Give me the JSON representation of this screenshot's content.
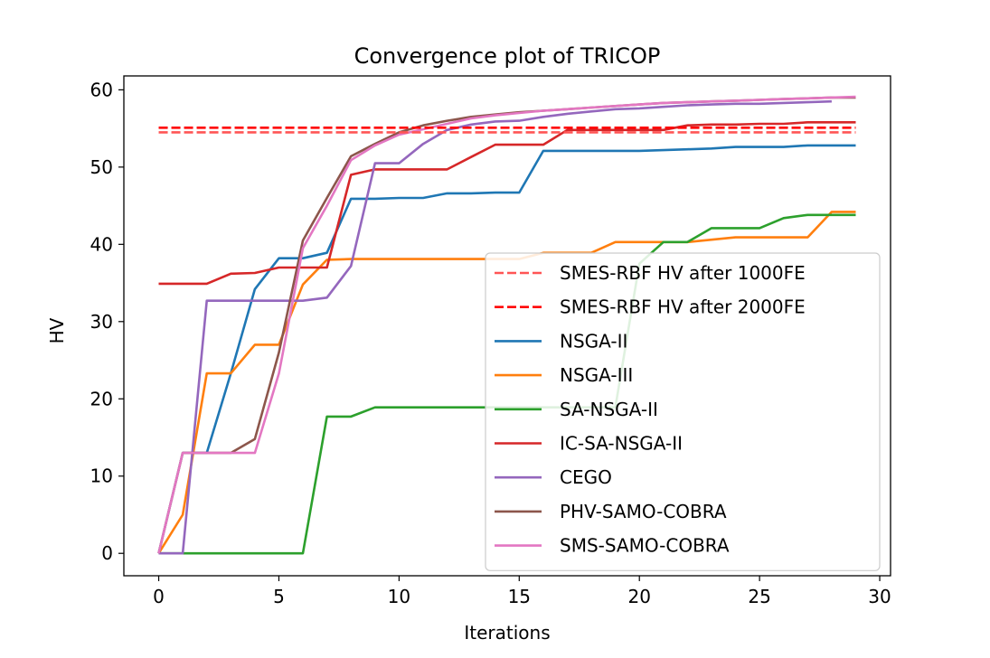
{
  "chart_data": {
    "type": "line",
    "title": "Convergence plot of TRICOP",
    "xlabel": "Iterations",
    "ylabel": "HV",
    "xlim": [
      -1.45,
      30.45
    ],
    "ylim": [
      -2.9,
      61.8
    ],
    "xticks": [
      0,
      5,
      10,
      15,
      20,
      25,
      30
    ],
    "yticks": [
      0,
      10,
      20,
      30,
      40,
      50,
      60
    ],
    "grid": false,
    "legend_position": "lower-right",
    "reference_lines": [
      {
        "name": "SMES-RBF HV after 1000FE",
        "y": 54.5,
        "x_range": [
          0,
          29
        ],
        "color": "#ff5555",
        "style": "dashed"
      },
      {
        "name": "SMES-RBF HV after 2000FE",
        "y": 55.1,
        "x_range": [
          0,
          29
        ],
        "color": "#ff0000",
        "style": "dashed"
      }
    ],
    "series": [
      {
        "name": "NSGA-II",
        "color": "#1f77b4",
        "x": [
          0,
          1,
          2,
          3,
          4,
          5,
          6,
          7,
          8,
          9,
          10,
          11,
          12,
          13,
          14,
          15,
          16,
          17,
          18,
          19,
          20,
          21,
          22,
          23,
          24,
          25,
          26,
          27,
          28,
          29
        ],
        "values": [
          0,
          13,
          13,
          23.3,
          34.2,
          38.2,
          38.2,
          38.9,
          45.9,
          45.9,
          46.0,
          46.0,
          46.6,
          46.6,
          46.7,
          46.7,
          52.1,
          52.1,
          52.1,
          52.1,
          52.1,
          52.2,
          52.3,
          52.4,
          52.6,
          52.6,
          52.6,
          52.8,
          52.8,
          52.8
        ]
      },
      {
        "name": "NSGA-III",
        "color": "#ff7f0e",
        "x": [
          0,
          1,
          2,
          3,
          4,
          5,
          6,
          7,
          8,
          9,
          10,
          11,
          12,
          13,
          14,
          15,
          16,
          17,
          18,
          19,
          20,
          21,
          22,
          23,
          24,
          25,
          26,
          27,
          28,
          29
        ],
        "values": [
          0,
          5,
          23.3,
          23.3,
          27.0,
          27.0,
          34.8,
          38.0,
          38.1,
          38.1,
          38.1,
          38.1,
          38.1,
          38.1,
          38.1,
          38.1,
          38.9,
          38.9,
          38.9,
          40.3,
          40.3,
          40.3,
          40.3,
          40.6,
          40.9,
          40.9,
          40.9,
          40.9,
          44.2,
          44.2
        ]
      },
      {
        "name": "SA-NSGA-II",
        "color": "#2ca02c",
        "x": [
          0,
          1,
          2,
          3,
          4,
          5,
          6,
          7,
          8,
          9,
          10,
          11,
          12,
          13,
          14,
          15,
          16,
          17,
          18,
          19,
          20,
          21,
          22,
          23,
          24,
          25,
          26,
          27,
          28,
          29
        ],
        "values": [
          0,
          0,
          0,
          0,
          0,
          0,
          0,
          17.7,
          17.7,
          18.9,
          18.9,
          18.9,
          18.9,
          18.9,
          18.9,
          18.9,
          18.9,
          18.9,
          18.9,
          18.9,
          37.5,
          40.3,
          40.3,
          42.1,
          42.1,
          42.1,
          43.4,
          43.8,
          43.8,
          43.8
        ]
      },
      {
        "name": "IC-SA-NSGA-II",
        "color": "#d62728",
        "x": [
          0,
          1,
          2,
          3,
          4,
          5,
          6,
          7,
          8,
          9,
          10,
          11,
          12,
          13,
          14,
          15,
          16,
          17,
          18,
          19,
          20,
          21,
          22,
          23,
          24,
          25,
          26,
          27,
          28,
          29
        ],
        "values": [
          34.9,
          34.9,
          34.9,
          36.2,
          36.3,
          37.0,
          37.0,
          37.0,
          49.0,
          49.7,
          49.7,
          49.7,
          49.7,
          51.3,
          52.9,
          52.9,
          52.9,
          54.8,
          54.8,
          54.8,
          54.8,
          54.8,
          55.4,
          55.5,
          55.5,
          55.6,
          55.6,
          55.8,
          55.8,
          55.8
        ]
      },
      {
        "name": "CEGO",
        "color": "#9467bd",
        "x": [
          0,
          1,
          2,
          3,
          4,
          5,
          6,
          7,
          8,
          9,
          10,
          11,
          12,
          13,
          14,
          15,
          16,
          17,
          18,
          19,
          20,
          21,
          22,
          23,
          24,
          25,
          26,
          27,
          28
        ],
        "values": [
          0,
          0,
          32.7,
          32.7,
          32.7,
          32.7,
          32.7,
          33.1,
          37.2,
          50.5,
          50.5,
          53.0,
          54.8,
          55.5,
          55.9,
          56.0,
          56.5,
          56.9,
          57.2,
          57.5,
          57.6,
          57.8,
          58.0,
          58.1,
          58.2,
          58.2,
          58.3,
          58.4,
          58.5
        ]
      },
      {
        "name": "PHV-SAMO-COBRA",
        "color": "#8c564b",
        "x": [
          0,
          1,
          2,
          3,
          4,
          5,
          6,
          7,
          8,
          9,
          10,
          11,
          12,
          13,
          14,
          15,
          16,
          17,
          18,
          19,
          20,
          21,
          22,
          23,
          24,
          25,
          26,
          27,
          28,
          29
        ],
        "values": [
          0,
          13,
          13,
          13,
          14.8,
          26.0,
          40.5,
          46.0,
          51.4,
          53.0,
          54.5,
          55.4,
          56.0,
          56.5,
          56.8,
          57.1,
          57.3,
          57.5,
          57.7,
          57.9,
          58.1,
          58.3,
          58.4,
          58.5,
          58.6,
          58.7,
          58.8,
          58.9,
          59.0,
          59.0
        ]
      },
      {
        "name": "SMS-SAMO-COBRA",
        "color": "#e377c2",
        "x": [
          0,
          1,
          2,
          3,
          4,
          5,
          6,
          7,
          8,
          9,
          10,
          11,
          12,
          13,
          14,
          15,
          16,
          17,
          18,
          19,
          20,
          21,
          22,
          23,
          24,
          25,
          26,
          27,
          28,
          29
        ],
        "values": [
          0,
          13,
          13,
          13,
          13,
          23.3,
          39.5,
          45.0,
          50.9,
          52.8,
          54.2,
          54.9,
          55.6,
          56.3,
          56.7,
          57.0,
          57.3,
          57.5,
          57.7,
          57.9,
          58.1,
          58.3,
          58.4,
          58.5,
          58.6,
          58.7,
          58.8,
          58.9,
          59.0,
          59.1
        ]
      }
    ]
  }
}
